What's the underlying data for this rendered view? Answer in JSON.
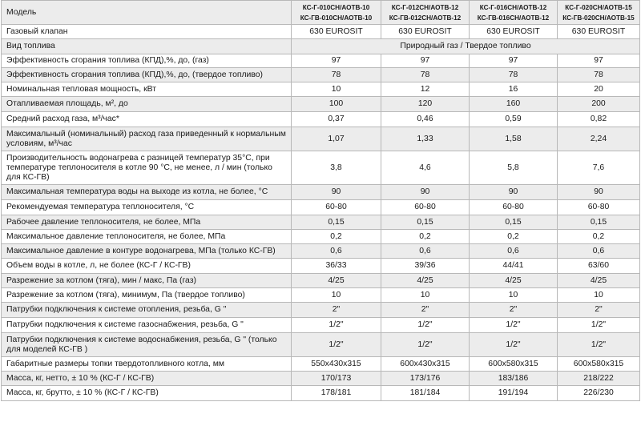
{
  "header": {
    "label": "Модель",
    "models": [
      {
        "line1": "КС-Г-010СН/АОТВ-10",
        "line2": "КС-ГВ-010СН/АОТВ-10"
      },
      {
        "line1": "КС-Г-012СН/АОТВ-12",
        "line2": "КС-ГВ-012СН/АОТВ-12"
      },
      {
        "line1": "КС-Г-016СН/АОТВ-12",
        "line2": "КС-ГВ-016СН/АОТВ-12"
      },
      {
        "line1": "КС-Г-020СН/АОТВ-15",
        "line2": "КС-ГВ-020СН/АОТВ-15"
      }
    ]
  },
  "gas_valve": {
    "label": "Газовый клапан",
    "values": [
      "630 EUROSIT",
      "630 EUROSIT",
      "630 EUROSIT",
      "630 EUROSIT"
    ]
  },
  "fuel_type": {
    "label": "Вид топлива",
    "value": "Природный газ / Твердое топливо"
  },
  "rows": [
    {
      "label": "Эффективность сгорания топлива (КПД),%, до, (газ)",
      "values": [
        "97",
        "97",
        "97",
        "97"
      ],
      "h": 17
    },
    {
      "label": "Эффективность сгорания топлива (КПД),%, до, (твердое топливо)",
      "values": [
        "78",
        "78",
        "78",
        "78"
      ],
      "h": 18
    },
    {
      "label": "Номинальная тепловая мощность, кВт",
      "values": [
        "10",
        "12",
        "16",
        "20"
      ],
      "h": 18
    },
    {
      "label": "Отапливаемая площадь, м², до",
      "values": [
        "100",
        "120",
        "160",
        "200"
      ],
      "h": 19
    },
    {
      "label": "Средний расход газа, м³/час*",
      "values": [
        "0,37",
        "0,46",
        "0,59",
        "0,82"
      ],
      "h": 19
    },
    {
      "label": "Максимальный (номинальный) расход газа приведенный к нормальным условиям, м³/час",
      "values": [
        "1,07",
        "1,33",
        "1,58",
        "2,24"
      ],
      "h": 30
    },
    {
      "label": "Производительность водонагрева с разницей температур 35°С, при температуре теплоносителя в котле 90 °С, не менее, л / мин (только для КС-ГВ)",
      "values": [
        "3,8",
        "4,6",
        "5,8",
        "7,6"
      ],
      "h": 42
    },
    {
      "label": "Максимальная температура воды на выходе из котла, не более, °С",
      "values": [
        "90",
        "90",
        "90",
        "90"
      ],
      "h": 19
    },
    {
      "label": "Рекомендуемая температура теплоносителя, °С",
      "values": [
        "60-80",
        "60-80",
        "60-80",
        "60-80"
      ],
      "h": 19
    },
    {
      "label": "Рабочее давление теплоносителя, не более, МПа",
      "values": [
        "0,15",
        "0,15",
        "0,15",
        "0,15"
      ],
      "h": 18
    },
    {
      "label": "Максимальное давление теплоносителя, не более, МПа",
      "values": [
        "0,2",
        "0,2",
        "0,2",
        "0,2"
      ],
      "h": 18
    },
    {
      "label": "Максимальное давление в контуре водонагрева, МПа (только КС-ГВ)",
      "values": [
        "0,6",
        "0,6",
        "0,6",
        "0,6"
      ],
      "h": 18
    },
    {
      "label": "Объем воды в котле, л, не более (КС-Г / КС-ГВ)",
      "values": [
        "36/33",
        "39/36",
        "44/41",
        "63/60"
      ],
      "h": 19
    },
    {
      "label": "Разрежение за котлом (тяга), мин / макс, Па (газ)",
      "values": [
        "4/25",
        "4/25",
        "4/25",
        "4/25"
      ],
      "h": 18
    },
    {
      "label": "Разрежение за котлом (тяга), минимум, Па (твердое топливо)",
      "values": [
        "10",
        "10",
        "10",
        "10"
      ],
      "h": 18
    },
    {
      "label": "Патрубки подключения к системе отопления, резьба, G \"",
      "values": [
        "2\"",
        "2\"",
        "2\"",
        "2\""
      ],
      "h": 19
    },
    {
      "label": "Патрубки подключения к системе газоснабжения, резьба, G \"",
      "values": [
        "1/2\"",
        "1/2\"",
        "1/2\"",
        "1/2\""
      ],
      "h": 19
    },
    {
      "label": "Патрубки подключения к системе водоснабжения, резьба, G \" (только для моделей КС-ГВ )",
      "values": [
        "1/2\"",
        "1/2\"",
        "1/2\"",
        "1/2\""
      ],
      "h": 30
    },
    {
      "label": "Габаритные размеры топки твердотопливного котла, мм",
      "values": [
        "550x430x315",
        "600x430x315",
        "600x580x315",
        "600x580x315"
      ],
      "h": 18
    },
    {
      "label": "Масса, кг, нетто, ± 10 % (КС-Г / КС-ГВ)",
      "values": [
        "170/173",
        "173/176",
        "183/186",
        "218/222"
      ],
      "h": 18
    },
    {
      "label": "Масса, кг, брутто, ± 10 % (КС-Г / КС-ГВ)",
      "values": [
        "178/181",
        "181/184",
        "191/194",
        "226/230"
      ],
      "h": 19
    }
  ]
}
